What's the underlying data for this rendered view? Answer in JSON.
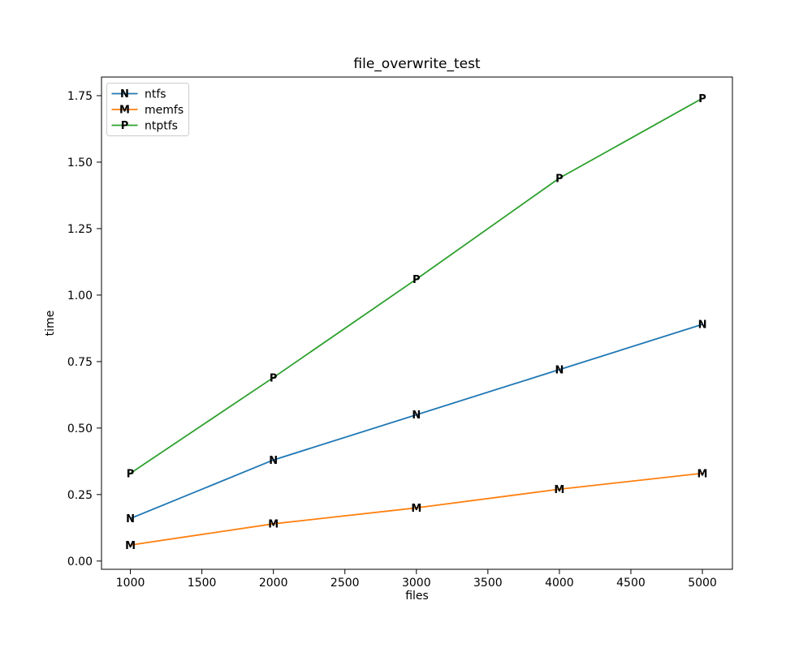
{
  "figure": {
    "background": "#ffffff"
  },
  "chart_data": {
    "type": "line",
    "title": "file_overwrite_test",
    "xlabel": "files",
    "ylabel": "time",
    "x": [
      1000,
      2000,
      3000,
      4000,
      5000
    ],
    "series": [
      {
        "name": "ntfs",
        "marker": "N",
        "color": "#1f77b4",
        "values": [
          0.16,
          0.38,
          0.55,
          0.72,
          0.89
        ]
      },
      {
        "name": "memfs",
        "marker": "M",
        "color": "#ff7f0e",
        "values": [
          0.06,
          0.14,
          0.2,
          0.27,
          0.33
        ]
      },
      {
        "name": "ntptfs",
        "marker": "P",
        "color": "#2ca02c",
        "values": [
          0.33,
          0.69,
          1.06,
          1.44,
          1.74
        ]
      }
    ],
    "xticks": [
      1000,
      1500,
      2000,
      2500,
      3000,
      3500,
      4000,
      4500,
      5000
    ],
    "xtick_labels": [
      "1000",
      "1500",
      "2000",
      "2500",
      "3000",
      "3500",
      "4000",
      "4500",
      "5000"
    ],
    "yticks": [
      0.0,
      0.25,
      0.5,
      0.75,
      1.0,
      1.25,
      1.5,
      1.75
    ],
    "ytick_labels": [
      "0.00",
      "0.25",
      "0.50",
      "0.75",
      "1.00",
      "1.25",
      "1.50",
      "1.75"
    ],
    "xlim": [
      798,
      5210
    ],
    "ylim": [
      -0.031,
      1.82
    ],
    "grid": false,
    "legend_position": "upper left",
    "frame_color": "#000000",
    "legend_border_color": "#cccccc"
  }
}
